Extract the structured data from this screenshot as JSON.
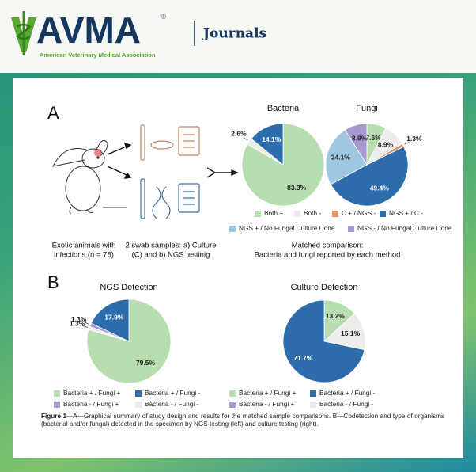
{
  "header": {
    "logo": "AVMA",
    "registered": "®",
    "org": "American Veterinary Medical Association",
    "section": "Journals"
  },
  "panel_a": {
    "label": "A",
    "caption_left": [
      "Exotic animals with",
      "infections (n = 78)"
    ],
    "caption_mid": [
      "2 swab samples: a) Culture",
      "(C) and b) NGS testinig"
    ],
    "caption_right": [
      "Matched comparison:",
      "Bacteria and fungi reported by each method"
    ]
  },
  "panel_b": {
    "label": "B"
  },
  "figure_caption": {
    "lead": "Figure 1",
    "text": "—A—Graphical summary of study design and results for the matched sample comparisons. B—Codetection and type of organisms (bacterial and/or fungal) detected in the specimen by NGS testing (left) and culture testing (right)."
  },
  "chart_data": [
    {
      "type": "pie",
      "title": "Bacteria",
      "categories": [
        "Both +",
        "Both -",
        "NGS + / C -"
      ],
      "values": [
        83.3,
        2.6,
        14.1
      ],
      "value_labels": [
        "83.3%",
        "2.6%",
        "14.1%"
      ],
      "colors": [
        "#b7ddb1",
        "#ececec",
        "#2e6dab"
      ]
    },
    {
      "type": "pie",
      "title": "Fungi",
      "categories": [
        "Both +",
        "Both -",
        "C + / NGS -",
        "NGS + / C -",
        "NGS + / No Fungal Culture Done",
        "NGS - / No Fungal Culture Done"
      ],
      "values": [
        7.6,
        8.9,
        1.3,
        49.4,
        24.1,
        8.9
      ],
      "value_labels": [
        "7.6%",
        "8.9%",
        "1.3%",
        "49.4%",
        "24.1%",
        "8.9%"
      ],
      "colors": [
        "#b7ddb1",
        "#ececec",
        "#e09468",
        "#2e6dab",
        "#a0c7e1",
        "#a898d0"
      ],
      "legend": true
    },
    {
      "type": "pie",
      "title": "NGS Detection",
      "categories": [
        "Bacteria + / Fungi +",
        "Bacteria - / Fungi -",
        "Bacteria - / Fungi +",
        "Bacteria + / Fungi -"
      ],
      "values": [
        79.5,
        1.3,
        1.3,
        17.9
      ],
      "value_labels": [
        "79.5%",
        "1.3%",
        "1.3%",
        "17.9%"
      ],
      "colors": [
        "#b7ddb1",
        "#ececec",
        "#a898d0",
        "#2e6dab"
      ],
      "legend_items": [
        {
          "name": "Bacteria + / Fungi +",
          "color": "#b7ddb1"
        },
        {
          "name": "Bacteria + / Fungi -",
          "color": "#2e6dab"
        },
        {
          "name": "Bacteria - / Fungi +",
          "color": "#a898d0"
        },
        {
          "name": "Bacteria - / Fungi -",
          "color": "#ececec"
        }
      ]
    },
    {
      "type": "pie",
      "title": "Culture Detection",
      "categories": [
        "Bacteria + / Fungi +",
        "Bacteria - / Fungi -",
        "Bacteria + / Fungi -"
      ],
      "values": [
        13.2,
        15.1,
        71.7
      ],
      "value_labels": [
        "13.2%",
        "15.1%",
        "71.7%"
      ],
      "colors": [
        "#b7ddb1",
        "#ececec",
        "#2e6dab"
      ],
      "legend_items": [
        {
          "name": "Bacteria + / Fungi +",
          "color": "#b7ddb1"
        },
        {
          "name": "Bacteria + / Fungi -",
          "color": "#2e6dab"
        },
        {
          "name": "Bacteria - / Fungi +",
          "color": "#a898d0"
        },
        {
          "name": "Bacteria - / Fungi -",
          "color": "#ececec"
        }
      ]
    }
  ]
}
